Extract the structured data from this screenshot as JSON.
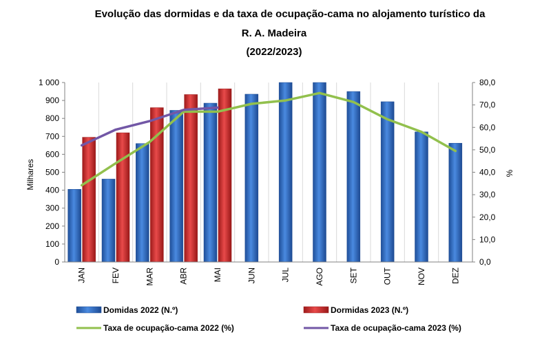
{
  "chart_data": {
    "type": "bar",
    "title_lines": [
      "Evolução das dormidas e da taxa de ocupação-cama no alojamento turístico da",
      "R. A. Madeira",
      "(2022/2023)"
    ],
    "categories": [
      "JAN",
      "FEV",
      "MAR",
      "ABR",
      "MAI",
      "JUN",
      "JUL",
      "AGO",
      "SET",
      "OUT",
      "NOV",
      "DEZ"
    ],
    "ylabel": "Milhares",
    "y2label": "%",
    "ylim": [
      0,
      1000
    ],
    "y2lim": [
      0,
      80
    ],
    "yticks": [
      "0",
      "100",
      "200",
      "300",
      "400",
      "500",
      "600",
      "700",
      "800",
      "900",
      "1 000"
    ],
    "y2ticks": [
      "0,0",
      "10,0",
      "20,0",
      "30,0",
      "40,0",
      "50,0",
      "60,0",
      "70,0",
      "80,0"
    ],
    "bar_series": [
      {
        "name": "Domidas 2022 (N.º)",
        "color": "#2f6ec4",
        "values": [
          405,
          462,
          660,
          845,
          885,
          935,
          1000,
          1000,
          950,
          893,
          725,
          662
        ]
      },
      {
        "name": "Dormidas 2023 (N.º)",
        "color": "#d12b2b",
        "values": [
          695,
          720,
          860,
          933,
          965,
          null,
          null,
          null,
          null,
          null,
          null,
          null
        ]
      }
    ],
    "line_series": [
      {
        "name": "Taxa de ocupação-cama 2022 (%)",
        "color": "#92c04d",
        "values": [
          34.2,
          44.0,
          53.5,
          67.0,
          67.0,
          70.5,
          72.0,
          75.3,
          71.3,
          63.6,
          58.0,
          49.5
        ]
      },
      {
        "name": "Taxa de ocupação-cama 2023 (%)",
        "color": "#7257a6",
        "values": [
          52.0,
          59.0,
          62.8,
          67.8,
          68.8,
          null,
          null,
          null,
          null,
          null,
          null,
          null
        ]
      }
    ]
  }
}
